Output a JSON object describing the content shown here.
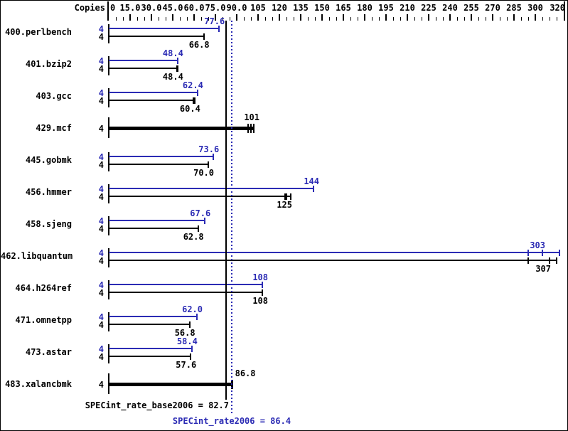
{
  "copies_header": "Copies",
  "summary": {
    "base": {
      "label": "SPECint_rate_base2006 = 82.7",
      "value": 82.7
    },
    "peak": {
      "label": "SPECint_rate2006 = 86.4",
      "value": 86.4
    }
  },
  "colors": {
    "peak_blue": "#2b2bb4",
    "base_black": "#000000",
    "background": "#ffffff"
  },
  "chart_data": {
    "type": "bar",
    "orientation": "horizontal",
    "legend": "none",
    "x_axis": {
      "min": 0,
      "max": 320,
      "minor_tick_step": 5,
      "major_tick_step": 15,
      "ticks": [
        {
          "v": 0,
          "label": "0"
        },
        {
          "v": 15,
          "label": "15.0"
        },
        {
          "v": 30,
          "label": "30.0"
        },
        {
          "v": 45,
          "label": "45.0"
        },
        {
          "v": 60,
          "label": "60.0"
        },
        {
          "v": 75,
          "label": "75.0"
        },
        {
          "v": 90,
          "label": "90.0"
        },
        {
          "v": 105,
          "label": "105"
        },
        {
          "v": 120,
          "label": "120"
        },
        {
          "v": 135,
          "label": "135"
        },
        {
          "v": 150,
          "label": "150"
        },
        {
          "v": 165,
          "label": "165"
        },
        {
          "v": 180,
          "label": "180"
        },
        {
          "v": 195,
          "label": "195"
        },
        {
          "v": 210,
          "label": "210"
        },
        {
          "v": 225,
          "label": "225"
        },
        {
          "v": 240,
          "label": "240"
        },
        {
          "v": 255,
          "label": "255"
        },
        {
          "v": 270,
          "label": "270"
        },
        {
          "v": 285,
          "label": "285"
        },
        {
          "v": 300,
          "label": "300"
        },
        {
          "v": 320,
          "label": "320"
        }
      ]
    },
    "benchmarks": [
      {
        "name": "400.perlbench",
        "copies": "4",
        "bars": [
          {
            "series": "peak",
            "label": "77.6",
            "value": 77.6,
            "marks": [
              77.6
            ]
          },
          {
            "series": "base",
            "label": "66.8",
            "value": 66.8,
            "marks": [
              66.8
            ]
          }
        ]
      },
      {
        "name": "401.bzip2",
        "copies": "4",
        "bars": [
          {
            "series": "peak",
            "label": "48.4",
            "value": 48.4,
            "marks": [
              48.4
            ]
          },
          {
            "series": "base",
            "label": "48.4",
            "value": 48.4,
            "marks": [
              48.0,
              48.4
            ]
          }
        ]
      },
      {
        "name": "403.gcc",
        "copies": "4",
        "bars": [
          {
            "series": "peak",
            "label": "62.4",
            "value": 62.4,
            "marks": [
              62.4
            ]
          },
          {
            "series": "base",
            "label": "60.4",
            "value": 60.4,
            "marks": [
              59.6,
              60.4
            ]
          }
        ]
      },
      {
        "name": "429.mcf",
        "copies": "4",
        "bars": [
          {
            "series": "both",
            "label": "101",
            "value": 101,
            "marks": [
              98,
              100,
              102
            ],
            "label_align": "end"
          }
        ]
      },
      {
        "name": "445.gobmk",
        "copies": "4",
        "bars": [
          {
            "series": "peak",
            "label": "73.6",
            "value": 73.6,
            "marks": [
              73.6
            ]
          },
          {
            "series": "base",
            "label": "70.0",
            "value": 70.0,
            "marks": [
              70.0
            ]
          }
        ]
      },
      {
        "name": "456.hmmer",
        "copies": "4",
        "bars": [
          {
            "series": "peak",
            "label": "144",
            "value": 144,
            "marks": [
              144
            ]
          },
          {
            "series": "base",
            "label": "125",
            "value": 125,
            "marks": [
              124,
              125,
              128
            ]
          }
        ]
      },
      {
        "name": "458.sjeng",
        "copies": "4",
        "bars": [
          {
            "series": "peak",
            "label": "67.6",
            "value": 67.6,
            "marks": [
              67.6
            ]
          },
          {
            "series": "base",
            "label": "62.8",
            "value": 62.8,
            "marks": [
              62.8
            ]
          }
        ]
      },
      {
        "name": "462.libquantum",
        "copies": "4",
        "bars": [
          {
            "series": "peak",
            "label": "303",
            "value": 303,
            "marks": [
              295,
              305,
              317
            ]
          },
          {
            "series": "base",
            "label": "307",
            "value": 307,
            "marks": [
              295,
              310,
              315
            ]
          }
        ]
      },
      {
        "name": "464.h264ref",
        "copies": "4",
        "bars": [
          {
            "series": "peak",
            "label": "108",
            "value": 108,
            "marks": [
              108
            ]
          },
          {
            "series": "base",
            "label": "108",
            "value": 108,
            "marks": [
              108
            ]
          }
        ]
      },
      {
        "name": "471.omnetpp",
        "copies": "4",
        "bars": [
          {
            "series": "peak",
            "label": "62.0",
            "value": 62.0,
            "marks": [
              62.0
            ]
          },
          {
            "series": "base",
            "label": "56.8",
            "value": 56.8,
            "marks": [
              56.8
            ]
          }
        ]
      },
      {
        "name": "473.astar",
        "copies": "4",
        "bars": [
          {
            "series": "peak",
            "label": "58.4",
            "value": 58.4,
            "marks": [
              58.4
            ]
          },
          {
            "series": "base",
            "label": "57.6",
            "value": 57.6,
            "marks": [
              57.6
            ]
          }
        ]
      },
      {
        "name": "483.xalancbmk",
        "copies": "4",
        "bars": [
          {
            "series": "both",
            "label": "86.8",
            "value": 86.8,
            "marks": [
              86.4,
              86.8
            ],
            "label_align": "after"
          }
        ]
      }
    ],
    "reference_lines": [
      {
        "series": "base",
        "value": 82.7,
        "style": "solid",
        "color": "#000000"
      },
      {
        "series": "peak",
        "value": 86.4,
        "style": "dotted",
        "color": "#2b2bb4"
      }
    ]
  }
}
